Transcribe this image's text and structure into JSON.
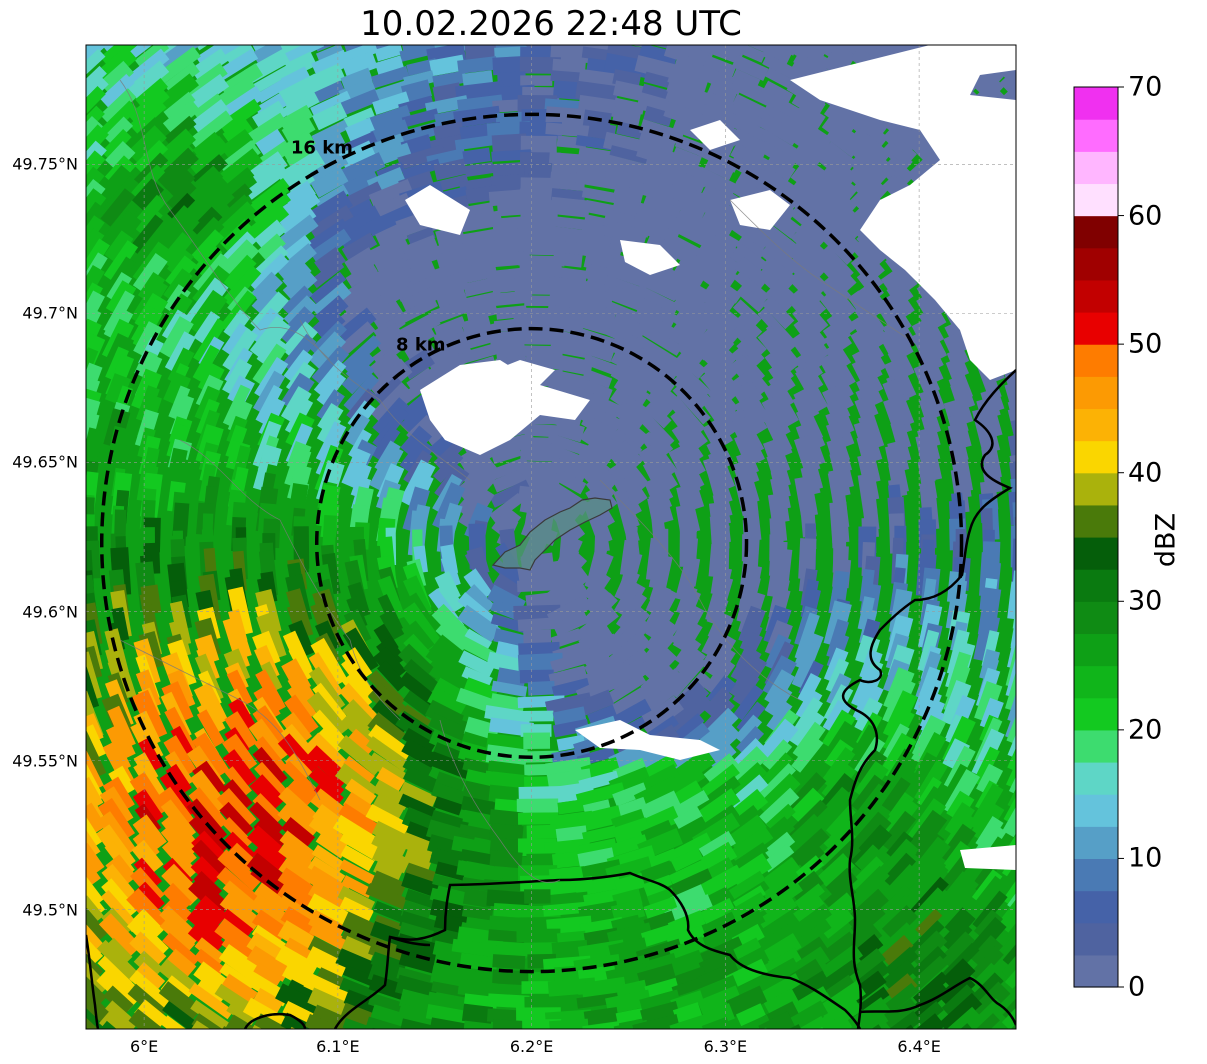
{
  "title": "10.02.2026 22:48 UTC",
  "map": {
    "lon_range": [
      5.97,
      6.45
    ],
    "lat_range": [
      49.46,
      49.79
    ],
    "x_ticks": [
      {
        "value": 6.0,
        "label": "6°E"
      },
      {
        "value": 6.1,
        "label": "6.1°E"
      },
      {
        "value": 6.2,
        "label": "6.2°E"
      },
      {
        "value": 6.3,
        "label": "6.3°E"
      },
      {
        "value": 6.4,
        "label": "6.4°E"
      }
    ],
    "y_ticks": [
      {
        "value": 49.5,
        "label": "49.5°N"
      },
      {
        "value": 49.55,
        "label": "49.55°N"
      },
      {
        "value": 49.6,
        "label": "49.6°N"
      },
      {
        "value": 49.65,
        "label": "49.65°N"
      },
      {
        "value": 49.7,
        "label": "49.7°N"
      },
      {
        "value": 49.75,
        "label": "49.75°N"
      }
    ],
    "center": {
      "lon": 6.2,
      "lat": 49.623
    },
    "range_rings": [
      {
        "km": 8,
        "label": "8 km"
      },
      {
        "km": 16,
        "label": "16 km"
      }
    ]
  },
  "colorbar": {
    "unit": "dBZ",
    "min": 0,
    "max": 70,
    "tick_values": [
      0,
      10,
      20,
      30,
      40,
      50,
      60,
      70
    ],
    "tick_labels": [
      "0",
      "10",
      "20",
      "30",
      "40",
      "50",
      "60",
      "70"
    ],
    "colors": [
      "#6272a6",
      "#4f63a0",
      "#4562a8",
      "#4a7ab4",
      "#569fc7",
      "#64c3dc",
      "#5ed6c6",
      "#3ddc6f",
      "#13c920",
      "#10b51a",
      "#0ea016",
      "#0f8b14",
      "#0a7a10",
      "#055e0a",
      "#4a7a0a",
      "#aab20c",
      "#fad600",
      "#fcb205",
      "#fc9a03",
      "#fe7c00",
      "#e80000",
      "#c20000",
      "#a00000",
      "#800000",
      "#ffe0ff",
      "#ffb6ff",
      "#ff6cff",
      "#f030f0"
    ]
  }
}
